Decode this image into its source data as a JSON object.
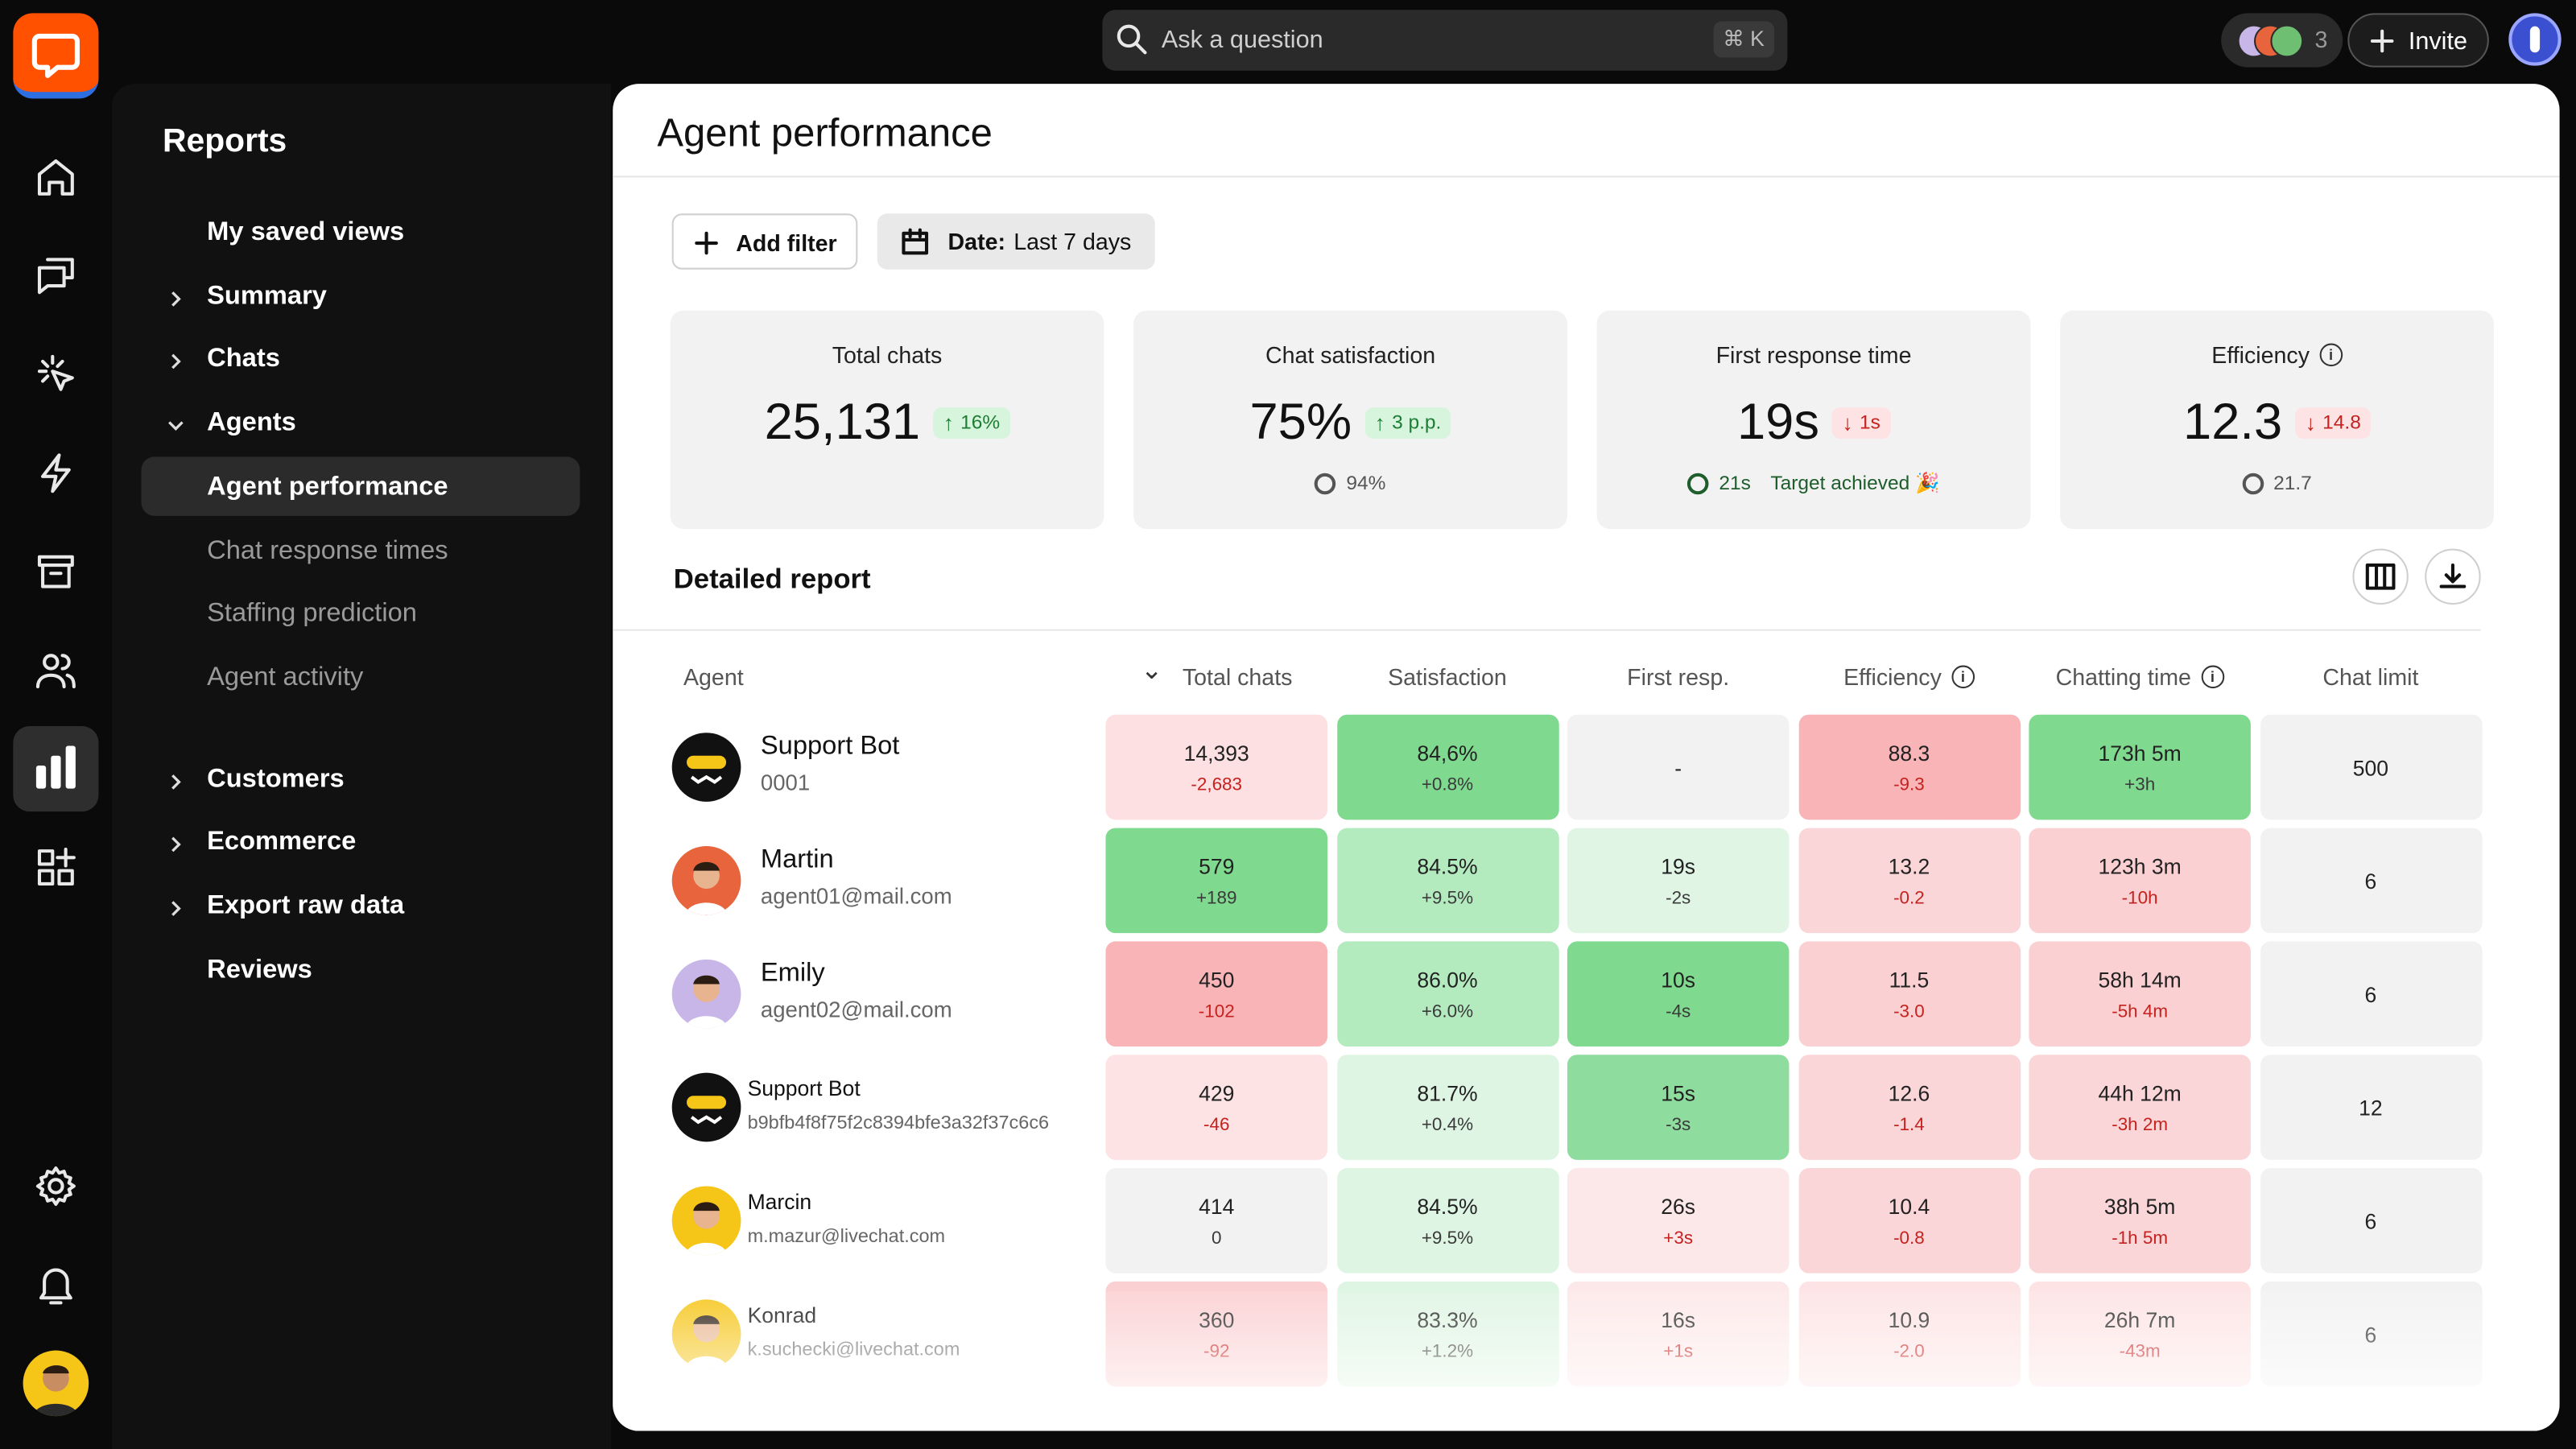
{
  "topbar": {
    "search_placeholder": "Ask a question",
    "search_shortcut": "⌘ K",
    "team_count": "3",
    "invite": "Invite"
  },
  "sidebar": {
    "title": "Reports",
    "items": [
      {
        "label": "My saved views"
      },
      {
        "label": "Summary",
        "chevron": "right"
      },
      {
        "label": "Chats",
        "chevron": "right"
      },
      {
        "label": "Agents",
        "chevron": "down",
        "children": [
          {
            "label": "Agent performance",
            "active": true
          },
          {
            "label": "Chat response times"
          },
          {
            "label": "Staffing prediction"
          },
          {
            "label": "Agent activity"
          }
        ]
      },
      {
        "label": "Customers",
        "chevron": "right"
      },
      {
        "label": "Ecommerce",
        "chevron": "right"
      },
      {
        "label": "Export raw data",
        "chevron": "right"
      },
      {
        "label": "Reviews"
      }
    ]
  },
  "header": {
    "title": "Agent performance"
  },
  "filters": {
    "add_filter": "Add filter",
    "date_label": "Date:",
    "date_value": "Last 7 days"
  },
  "kpis": [
    {
      "label": "Total chats",
      "value": "25,131",
      "change": "16%",
      "trend": "up"
    },
    {
      "label": "Chat satisfaction",
      "value": "75%",
      "change": "3 p.p.",
      "trend": "up",
      "target": "94%"
    },
    {
      "label": "First response time",
      "value": "19s",
      "change": "1s",
      "trend": "down",
      "target": "21s",
      "note": "Target achieved 🎉"
    },
    {
      "label": "Efficiency",
      "value": "12.3",
      "change": "14.8",
      "trend": "down",
      "target": "21.7",
      "info": true
    }
  ],
  "report": {
    "title": "Detailed report",
    "columns": [
      {
        "label": "Agent"
      },
      {
        "label": "Total chats",
        "sorted": true
      },
      {
        "label": "Satisfaction"
      },
      {
        "label": "First resp."
      },
      {
        "label": "Efficiency",
        "info": true
      },
      {
        "label": "Chatting time",
        "info": true
      },
      {
        "label": "Chat limit"
      }
    ],
    "rows": [
      {
        "name": "Support Bot",
        "id": "0001",
        "avatar": "bot",
        "cells": [
          {
            "value": "14,393",
            "change": "-2,683",
            "color": "#fde0e2"
          },
          {
            "value": "84,6%",
            "change": "+0.8%",
            "color": "#7fd98f"
          },
          {
            "value": "-",
            "color": "#f2f2f2"
          },
          {
            "value": "88.3",
            "change": "-9.3",
            "color": "#f9b4b7"
          },
          {
            "value": "173h 5m",
            "change": "+3h",
            "color": "#7fd98f"
          },
          {
            "value": "500",
            "color": "#f2f2f2"
          }
        ]
      },
      {
        "name": "Martin",
        "id": "agent01@mail.com",
        "avatar": "#e8643c",
        "cells": [
          {
            "value": "579",
            "change": "+189",
            "color": "#7fd98f"
          },
          {
            "value": "84.5%",
            "change": "+9.5%",
            "color": "#b3ebbf"
          },
          {
            "value": "19s",
            "change": "-2s",
            "color": "#e0f5e4"
          },
          {
            "value": "13.2",
            "change": "-0.2",
            "color": "#fbd6d8"
          },
          {
            "value": "123h 3m",
            "change": "-10h",
            "color": "#fbd0d2"
          },
          {
            "value": "6",
            "color": "#f2f2f2"
          }
        ]
      },
      {
        "name": "Emily",
        "id": "agent02@mail.com",
        "avatar": "#c9b6e8",
        "cells": [
          {
            "value": "450",
            "change": "-102",
            "color": "#f9b4b7"
          },
          {
            "value": "86.0%",
            "change": "+6.0%",
            "color": "#b3ebbf"
          },
          {
            "value": "10s",
            "change": "-4s",
            "color": "#7fd98f"
          },
          {
            "value": "11.5",
            "change": "-3.0",
            "color": "#fbd0d2"
          },
          {
            "value": "58h 14m",
            "change": "-5h 4m",
            "color": "#fbd0d2"
          },
          {
            "value": "6",
            "color": "#f2f2f2"
          }
        ]
      },
      {
        "name": "Support Bot",
        "id": "b9bfb4f8f75f2c8394bfe3a32f37c6c6",
        "avatar": "bot",
        "compact": true,
        "cells": [
          {
            "value": "429",
            "change": "-46",
            "color": "#fde3e4"
          },
          {
            "value": "81.7%",
            "change": "+0.4%",
            "color": "#dff5e3"
          },
          {
            "value": "15s",
            "change": "-3s",
            "color": "#8fdc9f"
          },
          {
            "value": "12.6",
            "change": "-1.4",
            "color": "#fbd6d8"
          },
          {
            "value": "44h 12m",
            "change": "-3h 2m",
            "color": "#fbd6d8"
          },
          {
            "value": "12",
            "color": "#f2f2f2"
          }
        ]
      },
      {
        "name": "Marcin",
        "id": "m.mazur@livechat.com",
        "avatar": "#f5c518",
        "compact": true,
        "cells": [
          {
            "value": "414",
            "change": "0",
            "color": "#f2f2f2"
          },
          {
            "value": "84.5%",
            "change": "+9.5%",
            "color": "#dff5e3"
          },
          {
            "value": "26s",
            "change": "+3s",
            "color": "#fde8e9"
          },
          {
            "value": "10.4",
            "change": "-0.8",
            "color": "#fbd6d8"
          },
          {
            "value": "38h 5m",
            "change": "-1h 5m",
            "color": "#fbd6d8"
          },
          {
            "value": "6",
            "color": "#f2f2f2"
          }
        ]
      },
      {
        "name": "Konrad",
        "id": "k.suchecki@livechat.com",
        "avatar": "#f5c518",
        "compact": true,
        "cells": [
          {
            "value": "360",
            "change": "-92",
            "color": "#fbd0d2"
          },
          {
            "value": "83.3%",
            "change": "+1.2%",
            "color": "#dff5e3"
          },
          {
            "value": "16s",
            "change": "+1s",
            "color": "#fde8e9"
          },
          {
            "value": "10.9",
            "change": "-2.0",
            "color": "#fde3e4"
          },
          {
            "value": "26h 7m",
            "change": "-43m",
            "color": "#fde3e4"
          },
          {
            "value": "6",
            "color": "#f2f2f2"
          }
        ]
      }
    ]
  }
}
